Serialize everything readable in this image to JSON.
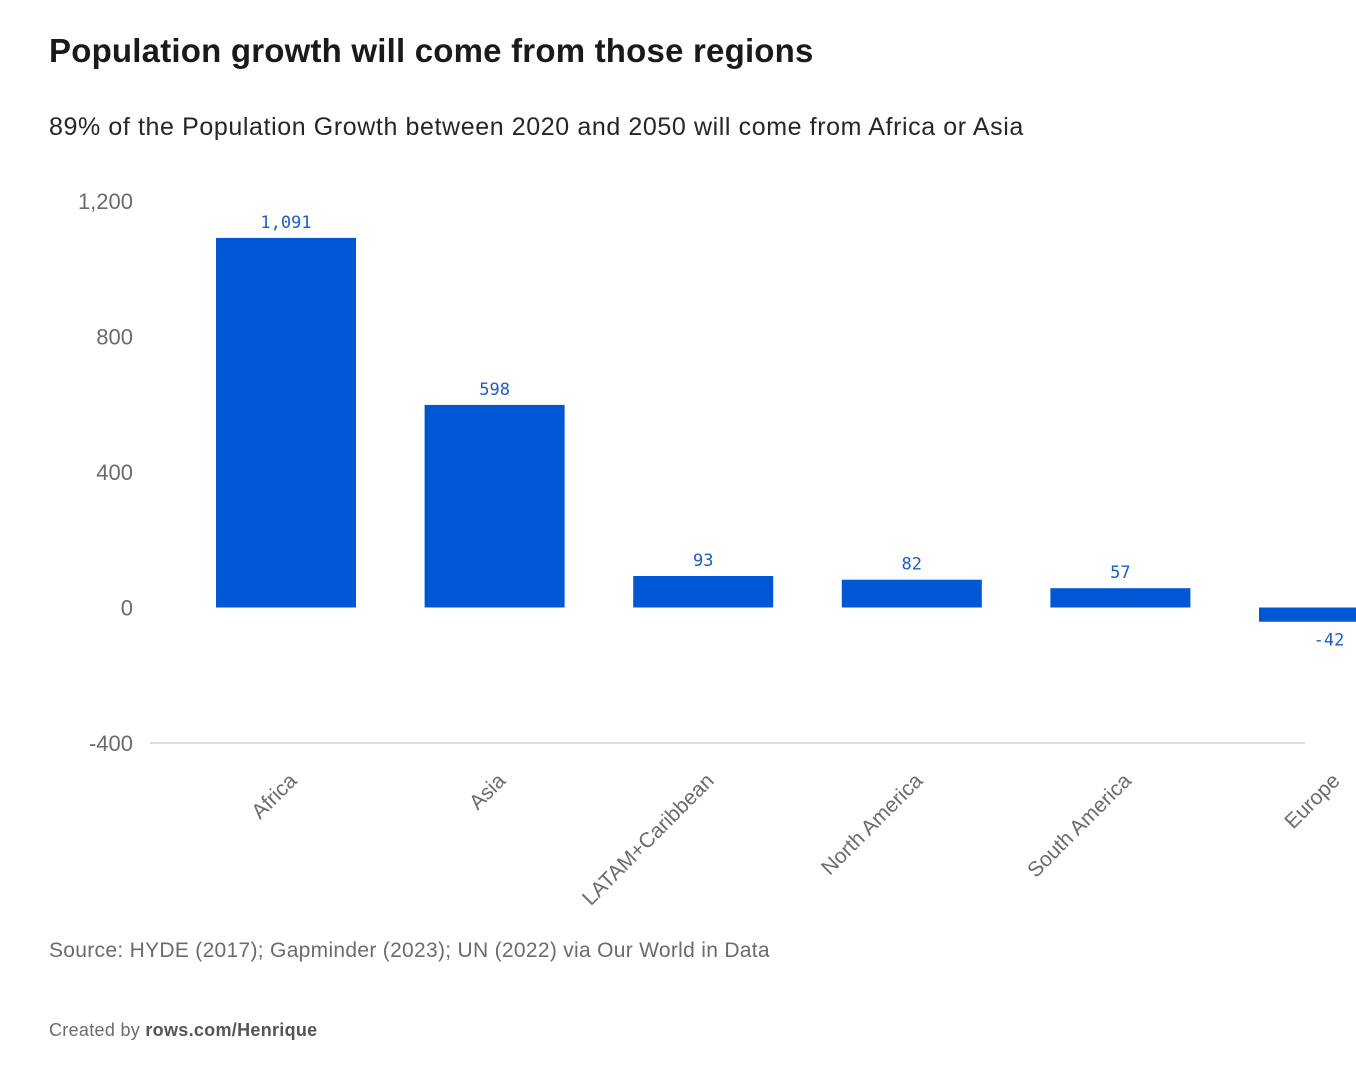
{
  "chart_data": {
    "type": "bar",
    "title": "Population growth will come from those regions",
    "subtitle": "89% of the Population Growth between 2020 and 2050 will come from Africa or Asia",
    "categories": [
      "Africa",
      "Asia",
      "LATAM+Caribbean",
      "North America",
      "South America",
      "Europe"
    ],
    "values": [
      1091,
      598,
      93,
      82,
      57,
      -42
    ],
    "data_labels": [
      "1,091",
      "598",
      "93",
      "82",
      "57",
      "-42"
    ],
    "ylim": [
      -400,
      1200
    ],
    "yticks": [
      1200,
      800,
      400,
      0,
      -400
    ],
    "ytick_labels": [
      "1,200",
      "800",
      "400",
      "0",
      "-400"
    ],
    "xlabel": "",
    "ylabel": "",
    "grid": false,
    "bar_color": "#0057d4",
    "label_color": "#1a5cc8"
  },
  "footer": {
    "source": "Source: HYDE (2017); Gapminder (2023); UN (2022) via Our World in Data",
    "credit_prefix": "Created by ",
    "credit_link": "rows.com/Henrique"
  }
}
